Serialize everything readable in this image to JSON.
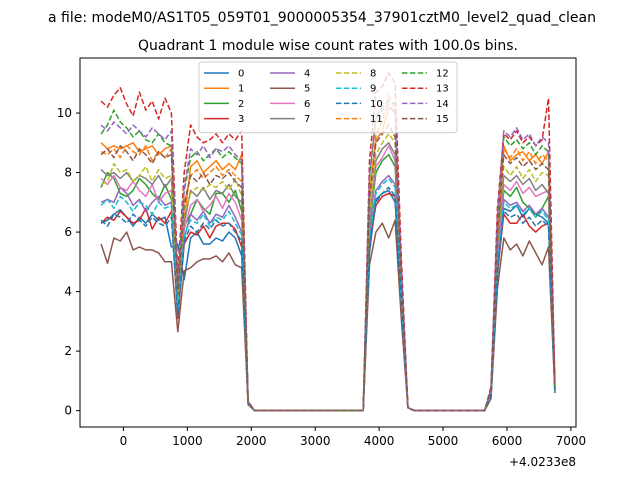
{
  "chart_data": {
    "type": "line",
    "suptitle": "a file: modeM0/AS1T05_059T01_9000005354_37901cztM0_level2_quad_clean",
    "title": "Quadrant 1 module wise count rates with 100.0s bins.",
    "xlabel": "",
    "ylabel": "",
    "x_offset_label": "+4.0233e8",
    "xlim": [
      -680,
      7080
    ],
    "ylim": [
      -0.55,
      11.85
    ],
    "xticks": [
      0,
      1000,
      2000,
      3000,
      4000,
      5000,
      6000,
      7000
    ],
    "yticks": [
      0,
      2,
      4,
      6,
      8,
      10
    ],
    "grid": false,
    "legend_position": "top-center",
    "legend_columns": 4,
    "x": [
      -350,
      -250,
      -150,
      -50,
      50,
      150,
      250,
      350,
      450,
      550,
      650,
      750,
      850,
      950,
      1050,
      1150,
      1250,
      1350,
      1450,
      1550,
      1650,
      1750,
      1850,
      1950,
      2050,
      2150,
      2250,
      2350,
      2450,
      2550,
      2650,
      2750,
      2850,
      2950,
      3050,
      3150,
      3250,
      3350,
      3450,
      3550,
      3650,
      3750,
      3850,
      3950,
      4050,
      4150,
      4250,
      4350,
      4450,
      4550,
      4650,
      4750,
      4850,
      4950,
      5050,
      5150,
      5250,
      5350,
      5450,
      5550,
      5650,
      5750,
      5850,
      5950,
      6050,
      6150,
      6250,
      6350,
      6450,
      6550,
      6650,
      6750
    ],
    "series": [
      {
        "name": "0",
        "color": "#1f77b4",
        "dash": "solid",
        "values": [
          6.3,
          6.4,
          6.6,
          6.75,
          6.5,
          6.2,
          6.5,
          6.3,
          6.6,
          6.4,
          6.5,
          5.5,
          5.6,
          4.4,
          5.8,
          6.0,
          5.6,
          5.6,
          5.8,
          5.7,
          6.0,
          5.8,
          5.2,
          0.25,
          0,
          0,
          0,
          0,
          0,
          0,
          0,
          0,
          0,
          0,
          0,
          0,
          0,
          0,
          0,
          0,
          0,
          0,
          5.3,
          7.1,
          7.3,
          7.4,
          7.0,
          3.8,
          0.1,
          0,
          0,
          0,
          0,
          0,
          0,
          0,
          0,
          0,
          0,
          0,
          0,
          0.5,
          4.5,
          6.8,
          6.7,
          6.9,
          6.5,
          6.8,
          6.6,
          6.5,
          6.3,
          0.7
        ]
      },
      {
        "name": "1",
        "color": "#ff7f0e",
        "dash": "solid",
        "values": [
          9.0,
          8.8,
          8.9,
          8.8,
          8.9,
          9.0,
          8.7,
          8.8,
          8.9,
          8.6,
          8.8,
          8.9,
          3.8,
          6.4,
          8.2,
          8.4,
          8.0,
          8.2,
          8.4,
          8.1,
          8.3,
          8.1,
          8.6,
          0.3,
          0,
          0,
          0,
          0,
          0,
          0,
          0,
          0,
          0,
          0,
          0,
          0,
          0,
          0,
          0,
          0,
          0,
          0,
          7.3,
          9.1,
          9.4,
          10.2,
          10.0,
          4.2,
          0.1,
          0,
          0,
          0,
          0,
          0,
          0,
          0,
          0,
          0,
          0,
          0,
          0,
          0.7,
          5.6,
          8.9,
          8.4,
          8.6,
          8.7,
          8.4,
          8.6,
          8.3,
          8.7,
          0.8
        ]
      },
      {
        "name": "2",
        "color": "#2ca02c",
        "dash": "solid",
        "values": [
          7.5,
          8.0,
          7.8,
          7.3,
          7.2,
          7.4,
          7.8,
          7.6,
          7.3,
          7.1,
          7.6,
          7.1,
          3.7,
          6.2,
          6.6,
          7.1,
          6.8,
          6.6,
          7.3,
          7.3,
          7.0,
          7.4,
          6.7,
          0.25,
          0,
          0,
          0,
          0,
          0,
          0,
          0,
          0,
          0,
          0,
          0,
          0,
          0,
          0,
          0,
          0,
          0,
          0,
          6.2,
          8.0,
          8.4,
          8.6,
          8.2,
          4.0,
          0.1,
          0,
          0,
          0,
          0,
          0,
          0,
          0,
          0,
          0,
          0,
          0,
          0,
          0.6,
          5.2,
          7.4,
          7.2,
          7.5,
          7.0,
          6.8,
          6.5,
          6.8,
          7.2,
          0.7
        ]
      },
      {
        "name": "3",
        "color": "#d62728",
        "dash": "solid",
        "values": [
          6.3,
          6.5,
          6.4,
          6.7,
          6.5,
          6.3,
          6.4,
          6.8,
          6.1,
          6.5,
          6.3,
          6.7,
          3.1,
          5.6,
          6.0,
          5.9,
          6.2,
          5.8,
          6.2,
          6.3,
          6.3,
          6.1,
          5.5,
          0.25,
          0,
          0,
          0,
          0,
          0,
          0,
          0,
          0,
          0,
          0,
          0,
          0,
          0,
          0,
          0,
          0,
          0,
          0,
          5.6,
          6.9,
          7.2,
          7.3,
          7.2,
          3.5,
          0.1,
          0,
          0,
          0,
          0,
          0,
          0,
          0,
          0,
          0,
          0,
          0,
          0,
          0.5,
          4.7,
          6.6,
          6.3,
          6.3,
          6.6,
          6.2,
          6.0,
          6.2,
          6.3,
          0.6
        ]
      },
      {
        "name": "4",
        "color": "#9467bd",
        "dash": "solid",
        "values": [
          7.0,
          7.1,
          7.0,
          7.5,
          7.3,
          6.9,
          7.1,
          6.7,
          7.0,
          7.2,
          6.9,
          7.0,
          3.4,
          5.8,
          6.6,
          6.4,
          6.7,
          6.3,
          6.6,
          6.5,
          6.9,
          6.5,
          6.0,
          0.25,
          0,
          0,
          0,
          0,
          0,
          0,
          0,
          0,
          0,
          0,
          0,
          0,
          0,
          0,
          0,
          0,
          0,
          0,
          5.9,
          7.4,
          7.7,
          7.9,
          7.6,
          3.7,
          0.1,
          0,
          0,
          0,
          0,
          0,
          0,
          0,
          0,
          0,
          0,
          0,
          0,
          0.6,
          5.0,
          7.1,
          6.9,
          7.0,
          6.7,
          6.9,
          6.6,
          6.8,
          6.5,
          0.7
        ]
      },
      {
        "name": "5",
        "color": "#8c564b",
        "dash": "solid",
        "values": [
          5.6,
          4.95,
          5.8,
          5.7,
          6.0,
          5.4,
          5.5,
          5.4,
          5.4,
          5.3,
          5.0,
          5.0,
          2.65,
          4.7,
          4.8,
          5.0,
          5.1,
          5.1,
          5.2,
          5.0,
          5.3,
          4.9,
          4.8,
          0.2,
          0,
          0,
          0,
          0,
          0,
          0,
          0,
          0,
          0,
          0,
          0,
          0,
          0,
          0,
          0,
          0,
          0,
          0,
          4.9,
          6.0,
          6.3,
          5.8,
          6.4,
          3.0,
          0.1,
          0,
          0,
          0,
          0,
          0,
          0,
          0,
          0,
          0,
          0,
          0,
          0,
          0.4,
          4.1,
          5.8,
          5.4,
          5.6,
          5.2,
          5.7,
          5.3,
          4.9,
          5.5,
          0.6
        ]
      },
      {
        "name": "6",
        "color": "#e377c2",
        "dash": "solid",
        "values": [
          7.8,
          7.6,
          7.9,
          7.5,
          7.4,
          7.7,
          7.4,
          7.2,
          7.6,
          7.0,
          7.3,
          7.4,
          3.5,
          6.1,
          6.9,
          7.1,
          6.7,
          6.9,
          7.2,
          6.8,
          7.3,
          7.0,
          6.4,
          0.25,
          0,
          0,
          0,
          0,
          0,
          0,
          0,
          0,
          0,
          0,
          0,
          0,
          0,
          0,
          0,
          0,
          0,
          0,
          6.4,
          8.2,
          8.5,
          8.9,
          8.4,
          4.0,
          0.1,
          0,
          0,
          0,
          0,
          0,
          0,
          0,
          0,
          0,
          0,
          0,
          0,
          0.6,
          5.3,
          7.6,
          7.4,
          7.7,
          7.3,
          7.5,
          7.2,
          7.3,
          7.4,
          0.7
        ]
      },
      {
        "name": "7",
        "color": "#7f7f7f",
        "dash": "solid",
        "values": [
          8.1,
          7.9,
          8.0,
          7.8,
          8.0,
          7.7,
          7.9,
          7.8,
          7.6,
          7.9,
          7.5,
          7.8,
          3.6,
          6.3,
          7.4,
          7.2,
          7.5,
          7.1,
          7.4,
          7.3,
          7.6,
          7.2,
          7.0,
          0.25,
          0,
          0,
          0,
          0,
          0,
          0,
          0,
          0,
          0,
          0,
          0,
          0,
          0,
          0,
          0,
          0,
          0,
          0,
          6.6,
          8.4,
          8.8,
          9.0,
          8.6,
          4.1,
          0.1,
          0,
          0,
          0,
          0,
          0,
          0,
          0,
          0,
          0,
          0,
          0,
          0,
          0.6,
          5.5,
          7.9,
          7.7,
          7.9,
          7.6,
          7.8,
          7.4,
          7.6,
          7.3,
          0.7
        ]
      },
      {
        "name": "8",
        "color": "#bcbd22",
        "dash": "dashed",
        "values": [
          7.6,
          7.7,
          8.3,
          8.0,
          8.1,
          7.7,
          7.9,
          8.2,
          7.7,
          8.1,
          7.8,
          7.9,
          3.7,
          6.6,
          7.3,
          7.5,
          7.4,
          7.6,
          7.5,
          7.7,
          7.4,
          7.8,
          7.2,
          0.25,
          0,
          0,
          0,
          0,
          0,
          0,
          0,
          0,
          0,
          0,
          0,
          0,
          0,
          0,
          0,
          0,
          0,
          0,
          6.7,
          8.6,
          9.0,
          9.3,
          9.0,
          4.2,
          0.1,
          0,
          0,
          0,
          0,
          0,
          0,
          0,
          0,
          0,
          0,
          0,
          0,
          0.6,
          5.6,
          8.2,
          7.9,
          8.2,
          7.8,
          8.1,
          7.7,
          8.0,
          7.9,
          0.7
        ]
      },
      {
        "name": "9",
        "color": "#17becf",
        "dash": "dashed",
        "values": [
          6.9,
          7.1,
          6.8,
          7.2,
          7.0,
          6.7,
          7.0,
          6.9,
          6.6,
          7.0,
          6.8,
          6.9,
          3.3,
          5.9,
          6.4,
          6.3,
          6.6,
          6.2,
          6.5,
          6.4,
          6.7,
          6.3,
          5.9,
          0.25,
          0,
          0,
          0,
          0,
          0,
          0,
          0,
          0,
          0,
          0,
          0,
          0,
          0,
          0,
          0,
          0,
          0,
          0,
          5.8,
          7.3,
          7.6,
          7.8,
          7.5,
          3.6,
          0.1,
          0,
          0,
          0,
          0,
          0,
          0,
          0,
          0,
          0,
          0,
          0,
          0,
          0.5,
          4.9,
          7.0,
          6.8,
          6.9,
          6.6,
          6.8,
          6.5,
          6.7,
          6.4,
          0.6
        ]
      },
      {
        "name": "10",
        "color": "#1f77b4",
        "dash": "dashed",
        "values": [
          6.4,
          6.2,
          6.6,
          6.5,
          6.3,
          6.6,
          6.4,
          6.2,
          6.5,
          6.3,
          6.2,
          6.5,
          3.2,
          5.7,
          6.2,
          6.0,
          6.3,
          6.1,
          6.4,
          6.2,
          6.3,
          6.0,
          5.7,
          0.25,
          0,
          0,
          0,
          0,
          0,
          0,
          0,
          0,
          0,
          0,
          0,
          0,
          0,
          0,
          0,
          0,
          0,
          0,
          5.5,
          7.0,
          7.3,
          7.5,
          7.2,
          3.5,
          0.1,
          0,
          0,
          0,
          0,
          0,
          0,
          0,
          0,
          0,
          0,
          0,
          0,
          0.5,
          4.7,
          6.7,
          6.5,
          6.6,
          6.3,
          6.5,
          6.2,
          6.4,
          6.2,
          0.6
        ]
      },
      {
        "name": "11",
        "color": "#ff7f0e",
        "dash": "dashed",
        "values": [
          8.7,
          8.6,
          8.8,
          8.5,
          8.9,
          8.7,
          8.6,
          8.9,
          8.4,
          8.7,
          8.5,
          8.8,
          4.0,
          7.0,
          7.9,
          8.1,
          7.8,
          8.0,
          8.2,
          7.9,
          8.1,
          7.9,
          7.7,
          0.3,
          0,
          0,
          0,
          0,
          0,
          0,
          0,
          0,
          0,
          0,
          0,
          0,
          0,
          0,
          0,
          0,
          0,
          0,
          7.2,
          9.3,
          9.7,
          10.6,
          10.1,
          4.4,
          0.1,
          0,
          0,
          0,
          0,
          0,
          0,
          0,
          0,
          0,
          0,
          0,
          0,
          0.7,
          6.0,
          8.8,
          8.5,
          8.8,
          8.4,
          8.7,
          8.3,
          8.6,
          8.4,
          0.8
        ]
      },
      {
        "name": "12",
        "color": "#2ca02c",
        "dash": "dashed",
        "values": [
          9.3,
          9.6,
          10.1,
          9.7,
          9.5,
          9.2,
          9.4,
          9.1,
          9.0,
          9.3,
          9.0,
          8.9,
          4.3,
          7.4,
          8.5,
          8.7,
          8.4,
          8.6,
          8.8,
          8.5,
          8.7,
          8.5,
          8.3,
          0.3,
          0,
          0,
          0,
          0,
          0,
          0,
          0,
          0,
          0,
          0,
          0,
          0,
          0,
          0,
          0,
          0,
          0,
          0,
          7.8,
          9.9,
          10.2,
          10.4,
          10.3,
          4.7,
          0.1,
          0,
          0,
          0,
          0,
          0,
          0,
          0,
          0,
          0,
          0,
          0,
          0,
          0.7,
          6.4,
          9.2,
          8.9,
          9.1,
          8.8,
          9.0,
          8.6,
          8.9,
          8.7,
          0.8
        ]
      },
      {
        "name": "13",
        "color": "#d62728",
        "dash": "dashed",
        "values": [
          10.4,
          10.2,
          10.6,
          10.85,
          10.3,
          9.9,
          10.7,
          10.1,
          10.4,
          9.8,
          10.5,
          10.0,
          4.6,
          8.0,
          9.6,
          9.2,
          9.0,
          9.1,
          9.3,
          9.0,
          9.3,
          9.1,
          9.4,
          0.3,
          0,
          0,
          0,
          0,
          0,
          0,
          0,
          0,
          0,
          0,
          0,
          0,
          0,
          0,
          0,
          0,
          0,
          0,
          8.4,
          10.7,
          10.9,
          11.35,
          11.0,
          5.0,
          0.1,
          0,
          0,
          0,
          0,
          0,
          0,
          0,
          0,
          0,
          0,
          0,
          0,
          0.8,
          6.8,
          9.3,
          9.1,
          9.4,
          9.0,
          9.2,
          8.9,
          9.1,
          10.5,
          0.9
        ]
      },
      {
        "name": "14",
        "color": "#9467bd",
        "dash": "dashed",
        "values": [
          9.6,
          9.4,
          9.7,
          9.5,
          9.3,
          9.6,
          9.4,
          9.2,
          9.5,
          9.3,
          9.1,
          9.4,
          4.2,
          7.5,
          8.8,
          8.6,
          8.9,
          8.5,
          8.8,
          8.7,
          8.9,
          8.6,
          8.4,
          0.3,
          0,
          0,
          0,
          0,
          0,
          0,
          0,
          0,
          0,
          0,
          0,
          0,
          0,
          0,
          0,
          0,
          0,
          0,
          7.9,
          9.8,
          10.1,
          10.3,
          10.0,
          4.7,
          0.1,
          0,
          0,
          0,
          0,
          0,
          0,
          0,
          0,
          0,
          0,
          0,
          0,
          0.7,
          6.5,
          9.4,
          9.2,
          9.5,
          9.1,
          9.3,
          8.9,
          9.2,
          9.0,
          0.8
        ]
      },
      {
        "name": "15",
        "color": "#8c564b",
        "dash": "dashed",
        "values": [
          8.6,
          8.8,
          8.5,
          8.9,
          8.7,
          8.4,
          8.8,
          8.6,
          8.3,
          8.7,
          8.5,
          8.6,
          3.9,
          6.9,
          7.9,
          7.7,
          8.0,
          7.6,
          7.9,
          7.8,
          8.0,
          7.7,
          7.5,
          0.3,
          0,
          0,
          0,
          0,
          0,
          0,
          0,
          0,
          0,
          0,
          0,
          0,
          0,
          0,
          0,
          0,
          0,
          0,
          7.1,
          9.0,
          9.3,
          9.6,
          9.2,
          4.3,
          0.1,
          0,
          0,
          0,
          0,
          0,
          0,
          0,
          0,
          0,
          0,
          0,
          0,
          0.7,
          5.8,
          8.6,
          8.3,
          8.5,
          8.2,
          8.4,
          8.1,
          8.3,
          8.1,
          0.8
        ]
      }
    ]
  }
}
